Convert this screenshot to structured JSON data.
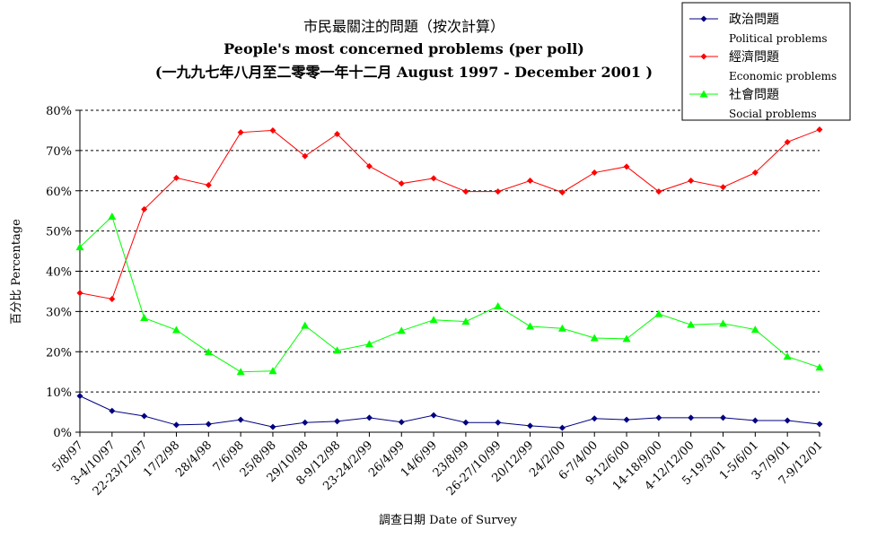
{
  "chart_data": {
    "type": "line",
    "title_zh": "市民最關注的問題（按次計算）",
    "title_en": "People's most concerned problems  (per poll)",
    "subtitle": "(一九九七年八月至二零零一年十二月 August 1997 - December 2001 )",
    "xlabel": "調查日期 Date of Survey",
    "ylabel": "百分比 Percentage",
    "ylim": [
      0,
      80
    ],
    "yticks": [
      "0%",
      "10%",
      "20%",
      "30%",
      "40%",
      "50%",
      "60%",
      "70%",
      "80%"
    ],
    "grid": true,
    "legend_position": "top-right",
    "categories": [
      "5/8/97",
      "3-4/10/97",
      "22-23/12/97",
      "17/2/98",
      "28/4/98",
      "7/6/98",
      "25/8/98",
      "29/10/98",
      "8-9/12/98",
      "23-24/2/99",
      "26/4/99",
      "14/6/99",
      "23/8/99",
      "26-27/10/99",
      "20/12/99",
      "24/2/00",
      "6-7/4/00",
      "9-12/6/00",
      "14-18/9/00",
      "4-12/12/00",
      "5-19/3/01",
      "1-5/6/01",
      "3-7/9/01",
      "7-9/12/01"
    ],
    "series": [
      {
        "name": "政治問題",
        "name_en": "Political problems",
        "color": "#000080",
        "marker": "diamond",
        "values": [
          9,
          5.3,
          4,
          1.8,
          2,
          3.1,
          1.3,
          2.4,
          2.7,
          3.6,
          2.5,
          4.2,
          2.4,
          2.4,
          1.6,
          1.1,
          3.4,
          3.1,
          3.6,
          3.6,
          3.6,
          2.9,
          2.9,
          2
        ]
      },
      {
        "name": "經濟問題",
        "name_en": "Economic problems",
        "color": "#ff0000",
        "marker": "diamond",
        "values": [
          34.6,
          33.1,
          55.4,
          63.2,
          61.4,
          74.5,
          75,
          68.6,
          74.1,
          66.1,
          61.8,
          63.1,
          59.8,
          59.8,
          62.5,
          59.6,
          64.5,
          66,
          59.8,
          62.5,
          60.9,
          64.5,
          72.1,
          75.2
        ]
      },
      {
        "name": "社會問題",
        "name_en": "Social problems",
        "color": "#00ff00",
        "marker": "triangle",
        "values": [
          46,
          53.6,
          28.4,
          25.4,
          19.9,
          15,
          15.2,
          26.5,
          20.3,
          21.9,
          25.2,
          27.9,
          27.5,
          31.3,
          26.3,
          25.8,
          23.4,
          23.2,
          29.4,
          26.7,
          27,
          25.5,
          18.8,
          16.1
        ]
      }
    ]
  }
}
